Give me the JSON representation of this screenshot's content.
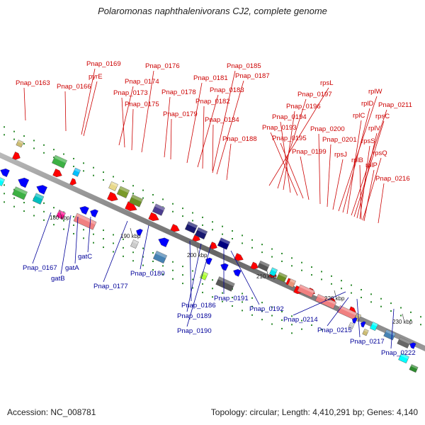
{
  "title": "Polaromonas naphthalenivorans CJ2, complete genome",
  "footer": {
    "accession": "Accession: NC_008781",
    "stats": "Topology: circular; Length: 4,410,291 bp; Genes: 4,140"
  },
  "colors": {
    "forward_label": "#cc0000",
    "reverse_label": "#000099",
    "backbone": "#888888"
  },
  "ticks": [
    {
      "label": "180 kbp"
    },
    {
      "label": "190 kbp"
    },
    {
      "label": "200 kbp"
    },
    {
      "label": "210 kbp"
    },
    {
      "label": "220 kbp"
    },
    {
      "label": "230 kbp"
    }
  ],
  "forward_labels": [
    "Pnap_0163",
    "Pnap_0166",
    "Pnap_0169",
    "pyrE",
    "Pnap_0174",
    "Pnap_0173",
    "Pnap_0175",
    "Pnap_0176",
    "Pnap_0178",
    "Pnap_0179",
    "Pnap_0181",
    "Pnap_0183",
    "Pnap_0182",
    "Pnap_0184",
    "Pnap_0185",
    "Pnap_0187",
    "Pnap_0188",
    "rpsL",
    "Pnap_0197",
    "Pnap_0196",
    "Pnap_0194",
    "Pnap_0193",
    "Pnap_0195",
    "Pnap_0199",
    "Pnap_0200",
    "Pnap_0201",
    "rpsJ",
    "rplW",
    "rplD",
    "rplC",
    "Pnap_0211",
    "rpsC",
    "rplV",
    "rpsS",
    "rplB",
    "rpsQ",
    "rplP",
    "Pnap_0216"
  ],
  "reverse_labels": [
    "Pnap_0167",
    "gatA",
    "gatB",
    "gatC",
    "Pnap_0177",
    "Pnap_0180",
    "Pnap_0186",
    "Pnap_0189",
    "Pnap_0190",
    "Pnap_0191",
    "Pnap_0192",
    "Pnap_0214",
    "Pnap_0215",
    "Pnap_0217",
    "Pnap_0222"
  ]
}
